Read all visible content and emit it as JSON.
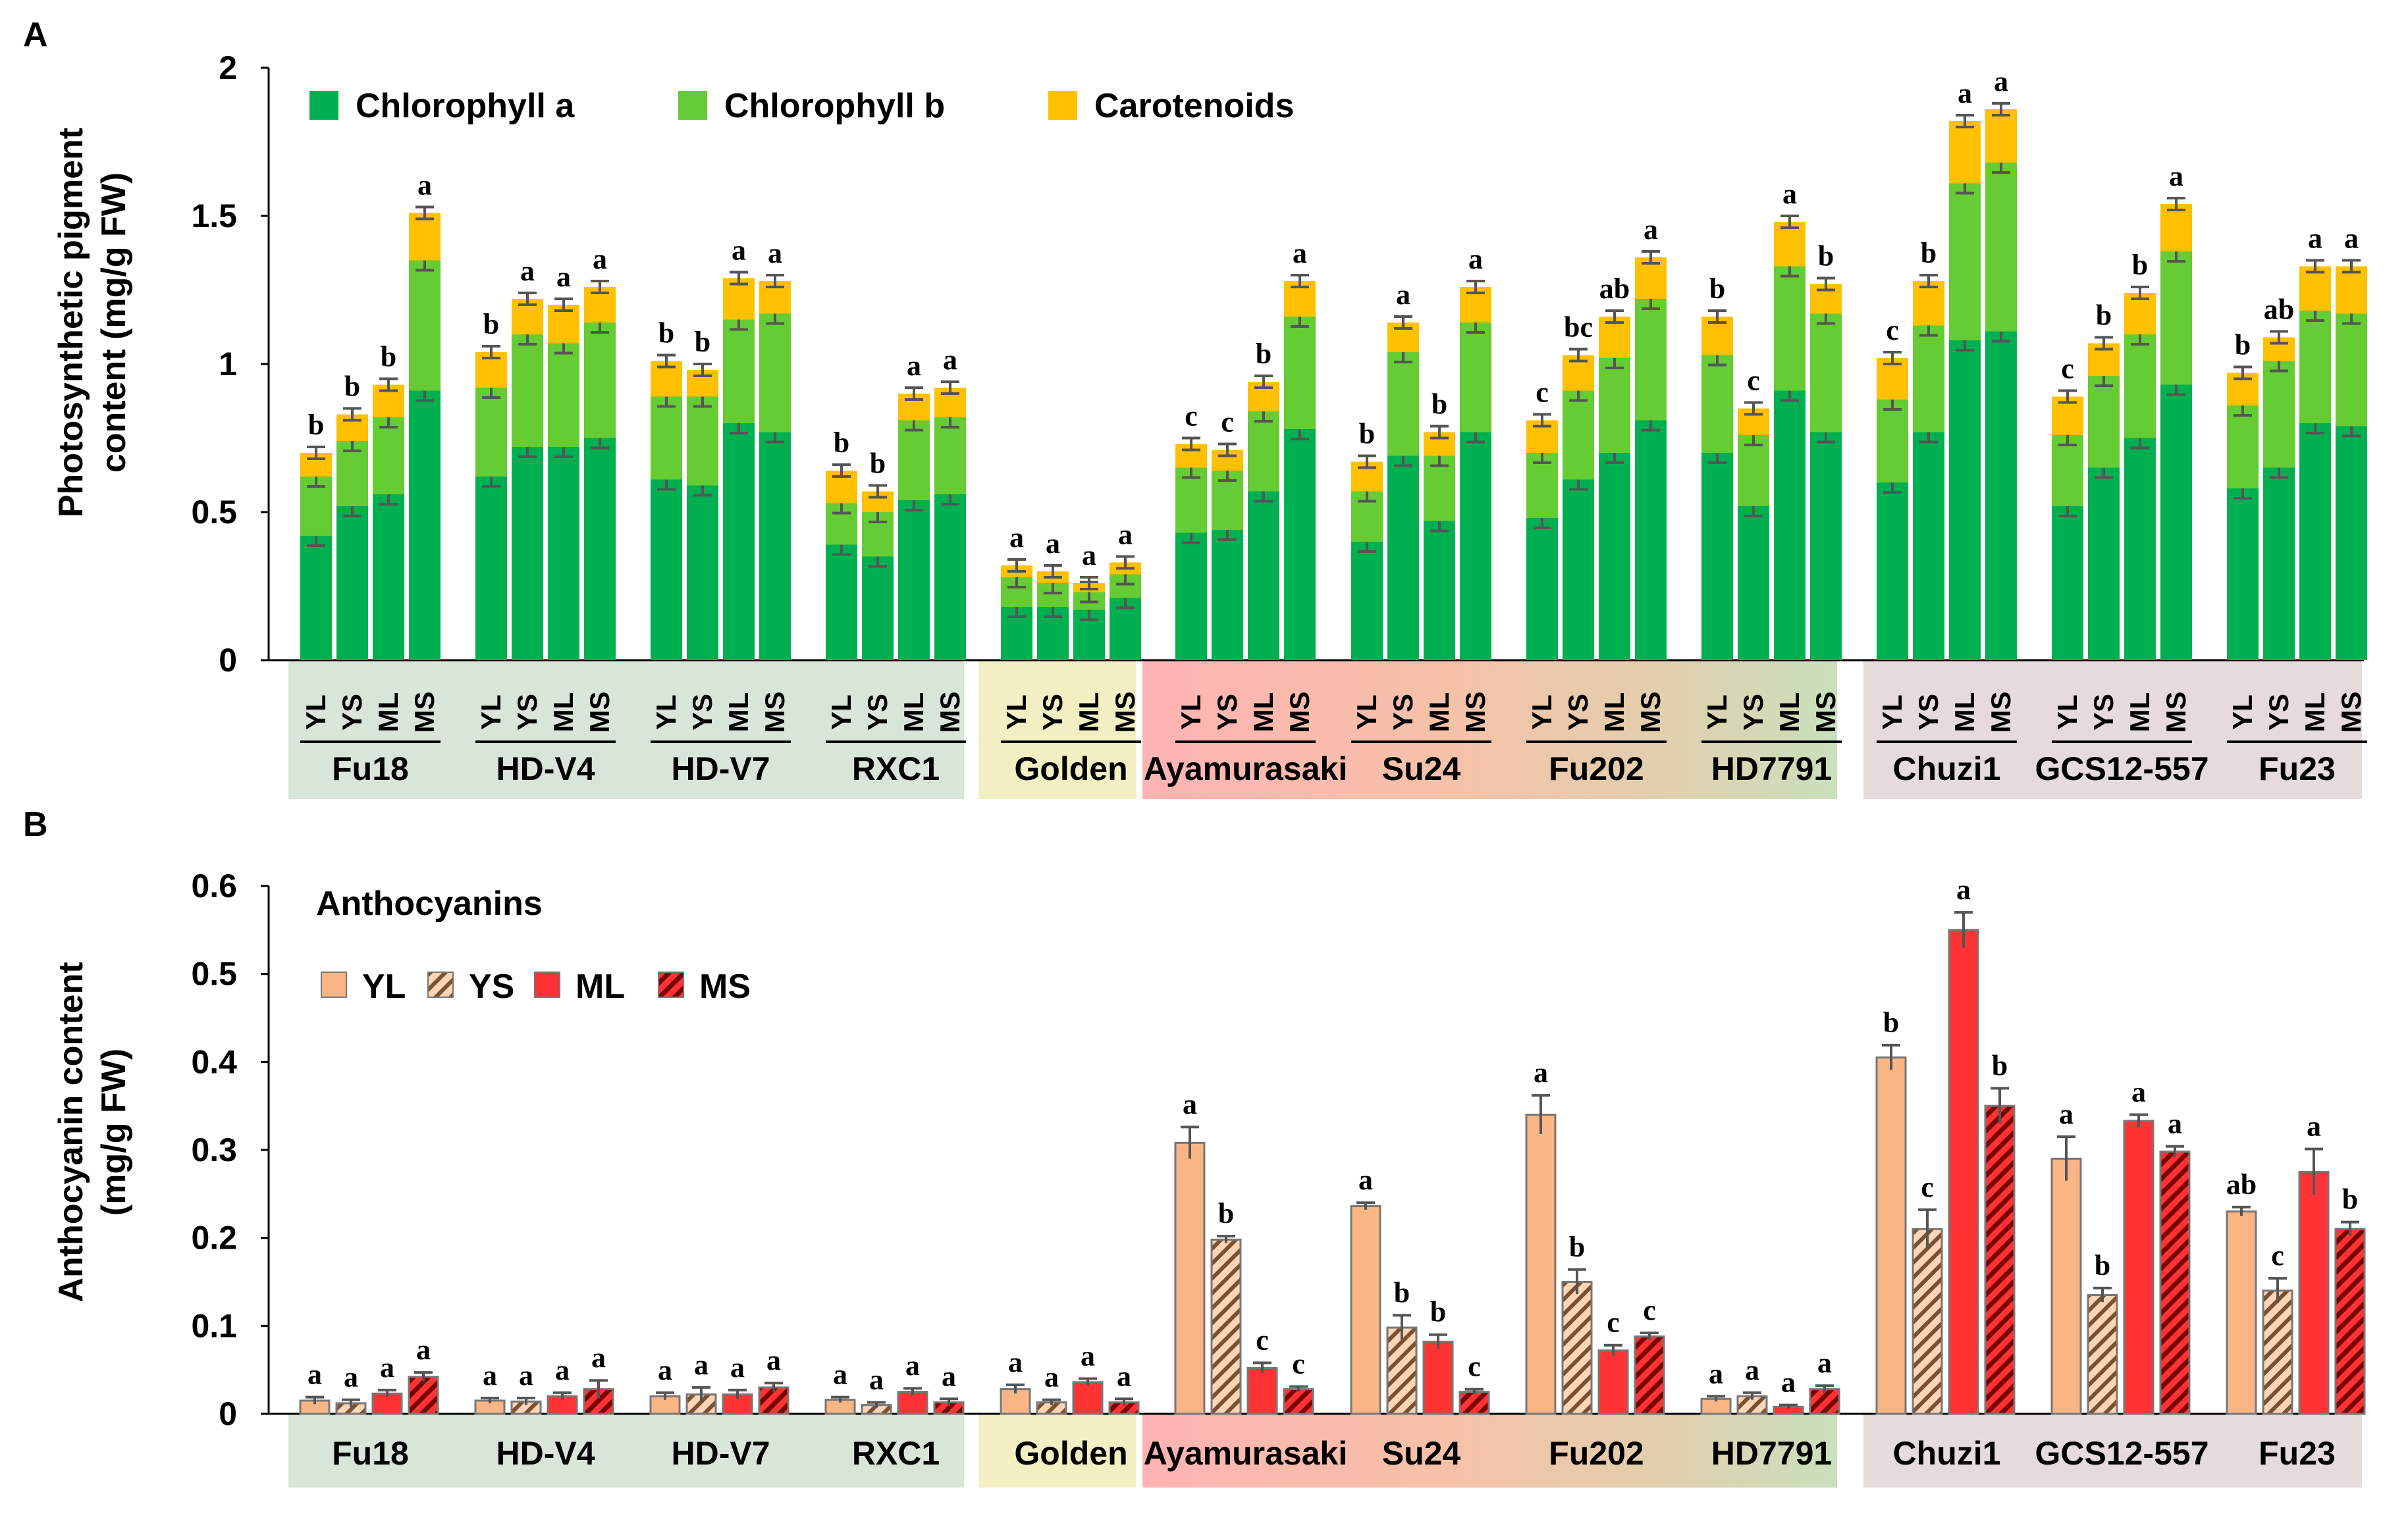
{
  "colors": {
    "chl_a": "#00b050",
    "chl_b": "#66cc33",
    "car": "#ffc000",
    "YL": "#f9b584",
    "YS": "#fbd5b5",
    "YS_hatch": "#7a5030",
    "ML": "#ff3333",
    "MS": "#e02020",
    "MS_hatch": "#7a0000",
    "error": "#555555",
    "band_green": "#d9e5d9",
    "band_golden": "#f2f0c2",
    "band_purple": "#e6dbdb",
    "band_red": "#ffb3b3",
    "band_gradmid": "#f2c4a0",
    "band_gradgreen": "#cfe0c0"
  },
  "chart_data": [
    {
      "type": "bar",
      "stacked": true,
      "panel_label": "A",
      "ylabel_line1": "Photosynthetic pigment",
      "ylabel_line2": "content (mg/g FW)",
      "ylim": [
        0,
        2
      ],
      "yticks": [
        "0",
        "0.5",
        "1",
        "1.5",
        "2"
      ],
      "ytick_values": [
        0,
        0.5,
        1,
        1.5,
        2
      ],
      "legend": [
        "Chlorophyll a",
        "Chlorophyll b",
        "Carotenoids"
      ],
      "stage_labels": [
        "YL",
        "YS",
        "ML",
        "MS"
      ],
      "varieties": [
        "Fu18",
        "HD-V4",
        "HD-V7",
        "RXC1",
        "Golden",
        "Ayamurasaki",
        "Su24",
        "Fu202",
        "HD7791",
        "Chuzi1",
        "GCS12-557",
        "Fu23"
      ],
      "series": [
        {
          "name": "Chlorophyll a",
          "values": [
            [
              0.42,
              0.52,
              0.56,
              0.91
            ],
            [
              0.62,
              0.72,
              0.72,
              0.75
            ],
            [
              0.61,
              0.59,
              0.8,
              0.77
            ],
            [
              0.39,
              0.35,
              0.54,
              0.56
            ],
            [
              0.18,
              0.18,
              0.17,
              0.21
            ],
            [
              0.43,
              0.44,
              0.57,
              0.78
            ],
            [
              0.4,
              0.69,
              0.47,
              0.77
            ],
            [
              0.48,
              0.61,
              0.7,
              0.81
            ],
            [
              0.7,
              0.52,
              0.91,
              0.77
            ],
            [
              0.6,
              0.77,
              1.08,
              1.11
            ],
            [
              0.52,
              0.65,
              0.75,
              0.93
            ],
            [
              0.58,
              0.65,
              0.8,
              0.79
            ]
          ]
        },
        {
          "name": "Chlorophyll b",
          "values": [
            [
              0.2,
              0.22,
              0.26,
              0.44
            ],
            [
              0.3,
              0.38,
              0.35,
              0.39
            ],
            [
              0.28,
              0.3,
              0.35,
              0.4
            ],
            [
              0.14,
              0.15,
              0.27,
              0.26
            ],
            [
              0.1,
              0.08,
              0.06,
              0.08
            ],
            [
              0.22,
              0.2,
              0.27,
              0.38
            ],
            [
              0.17,
              0.35,
              0.22,
              0.37
            ],
            [
              0.22,
              0.3,
              0.32,
              0.41
            ],
            [
              0.33,
              0.24,
              0.42,
              0.4
            ],
            [
              0.28,
              0.36,
              0.53,
              0.57
            ],
            [
              0.24,
              0.31,
              0.35,
              0.45
            ],
            [
              0.28,
              0.36,
              0.38,
              0.38
            ]
          ]
        },
        {
          "name": "Carotenoids",
          "values": [
            [
              0.08,
              0.09,
              0.11,
              0.16
            ],
            [
              0.12,
              0.12,
              0.13,
              0.12
            ],
            [
              0.12,
              0.09,
              0.14,
              0.11
            ],
            [
              0.11,
              0.07,
              0.09,
              0.1
            ],
            [
              0.04,
              0.04,
              0.03,
              0.04
            ],
            [
              0.08,
              0.07,
              0.1,
              0.12
            ],
            [
              0.1,
              0.1,
              0.08,
              0.12
            ],
            [
              0.11,
              0.12,
              0.14,
              0.14
            ],
            [
              0.13,
              0.09,
              0.15,
              0.1
            ],
            [
              0.14,
              0.15,
              0.21,
              0.18
            ],
            [
              0.13,
              0.11,
              0.14,
              0.16
            ],
            [
              0.11,
              0.08,
              0.15,
              0.16
            ]
          ]
        }
      ],
      "significance": [
        [
          "b",
          "b",
          "b",
          "a"
        ],
        [
          "b",
          "a",
          "a",
          "a"
        ],
        [
          "b",
          "b",
          "a",
          "a"
        ],
        [
          "b",
          "b",
          "a",
          "a"
        ],
        [
          "a",
          "a",
          "a",
          "a"
        ],
        [
          "c",
          "c",
          "b",
          "a"
        ],
        [
          "b",
          "a",
          "b",
          "a"
        ],
        [
          "c",
          "bc",
          "ab",
          "a"
        ],
        [
          "b",
          "c",
          "a",
          "b"
        ],
        [
          "c",
          "b",
          "a",
          "a"
        ],
        [
          "c",
          "b",
          "b",
          "a"
        ],
        [
          "b",
          "ab",
          "a",
          "a"
        ]
      ]
    },
    {
      "type": "bar",
      "panel_label": "B",
      "ylabel_line1": "Anthocyanin content",
      "ylabel_line2": "(mg/g FW)",
      "title": "Anthocyanins",
      "ylim": [
        0,
        0.6
      ],
      "yticks": [
        "0",
        "0.1",
        "0.2",
        "0.3",
        "0.4",
        "0.5",
        "0.6"
      ],
      "ytick_values": [
        0,
        0.1,
        0.2,
        0.3,
        0.4,
        0.5,
        0.6
      ],
      "legend": [
        "YL",
        "YS",
        "ML",
        "MS"
      ],
      "varieties": [
        "Fu18",
        "HD-V4",
        "HD-V7",
        "RXC1",
        "Golden",
        "Ayamurasaki",
        "Su24",
        "Fu202",
        "HD7791",
        "Chuzi1",
        "GCS12-557",
        "Fu23"
      ],
      "values": [
        [
          0.015,
          0.012,
          0.023,
          0.042
        ],
        [
          0.015,
          0.014,
          0.02,
          0.028
        ],
        [
          0.02,
          0.022,
          0.022,
          0.03
        ],
        [
          0.016,
          0.01,
          0.025,
          0.013
        ],
        [
          0.028,
          0.013,
          0.036,
          0.013
        ],
        [
          0.308,
          0.198,
          0.052,
          0.028
        ],
        [
          0.236,
          0.098,
          0.082,
          0.025
        ],
        [
          0.34,
          0.15,
          0.072,
          0.088
        ],
        [
          0.017,
          0.02,
          0.008,
          0.028
        ],
        [
          0.405,
          0.21,
          0.55,
          0.35
        ],
        [
          0.29,
          0.135,
          0.333,
          0.298
        ],
        [
          0.23,
          0.14,
          0.275,
          0.21
        ]
      ],
      "errors": [
        [
          0.004,
          0.004,
          0.004,
          0.005
        ],
        [
          0.003,
          0.004,
          0.004,
          0.01
        ],
        [
          0.004,
          0.008,
          0.005,
          0.005
        ],
        [
          0.003,
          0.003,
          0.004,
          0.004
        ],
        [
          0.005,
          0.003,
          0.004,
          0.004
        ],
        [
          0.018,
          0.004,
          0.006,
          0.003
        ],
        [
          0.004,
          0.014,
          0.008,
          0.003
        ],
        [
          0.022,
          0.014,
          0.006,
          0.004
        ],
        [
          0.003,
          0.004,
          0.002,
          0.004
        ],
        [
          0.014,
          0.022,
          0.02,
          0.02
        ],
        [
          0.025,
          0.008,
          0.007,
          0.006
        ],
        [
          0.005,
          0.014,
          0.026,
          0.008
        ]
      ],
      "significance": [
        [
          "a",
          "a",
          "a",
          "a"
        ],
        [
          "a",
          "a",
          "a",
          "a"
        ],
        [
          "a",
          "a",
          "a",
          "a"
        ],
        [
          "a",
          "a",
          "a",
          "a"
        ],
        [
          "a",
          "a",
          "a",
          "a"
        ],
        [
          "a",
          "b",
          "c",
          "c"
        ],
        [
          "a",
          "b",
          "b",
          "c"
        ],
        [
          "a",
          "b",
          "c",
          "c"
        ],
        [
          "a",
          "a",
          "a",
          "a"
        ],
        [
          "b",
          "c",
          "a",
          "b"
        ],
        [
          "a",
          "b",
          "a",
          "a"
        ],
        [
          "ab",
          "c",
          "a",
          "b"
        ]
      ]
    }
  ]
}
